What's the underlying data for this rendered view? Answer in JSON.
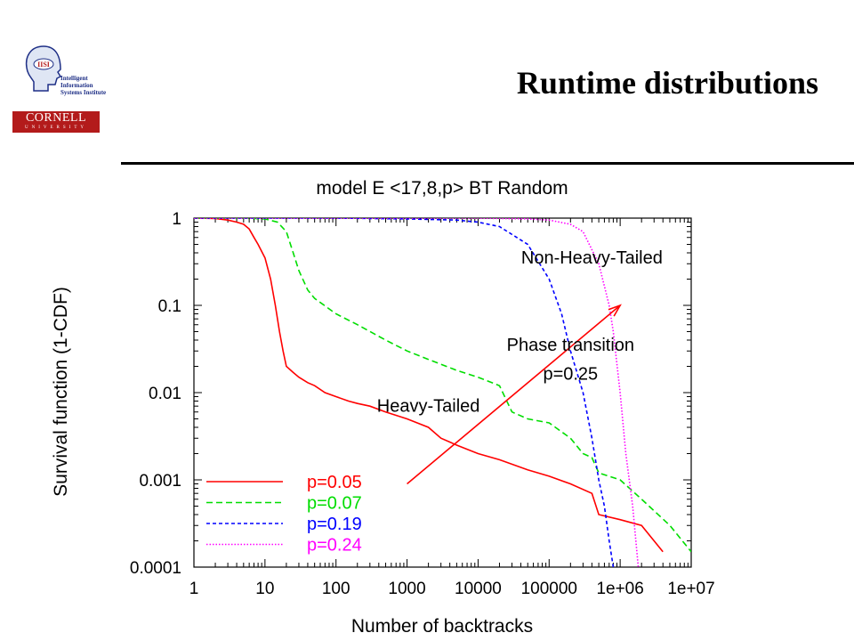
{
  "slide": {
    "title": "Runtime distributions"
  },
  "logos": {
    "iisi_badge": "IISI",
    "iisi_lines": [
      "Intelligent Information",
      "Systems Institute"
    ],
    "cornell_word": "CORNELL",
    "cornell_sub": "UNIVERSITY"
  },
  "chart_data": {
    "type": "line",
    "title": "model E <17,8,p> BT Random",
    "xlabel": "Number of backtracks",
    "ylabel": "Survival function (1-CDF)",
    "xscale": "log",
    "yscale": "log",
    "xlim": [
      1,
      10000000
    ],
    "ylim": [
      0.0001,
      1
    ],
    "xticks": [
      "1",
      "10",
      "100",
      "1000",
      "10000",
      "100000",
      "1e+06",
      "1e+07"
    ],
    "yticks": [
      "1",
      "0.1",
      "0.01",
      "0.001",
      "0.0001"
    ],
    "legend_position": "bottom-left",
    "series": [
      {
        "name": "p=0.05",
        "color": "#ff0000",
        "dash": "solid",
        "x": [
          1,
          2,
          3,
          4,
          5,
          6,
          7,
          8,
          10,
          12,
          14,
          16,
          18,
          20,
          25,
          30,
          40,
          50,
          70,
          100,
          150,
          200,
          300,
          500,
          1000,
          2000,
          3000,
          5000,
          10000,
          20000,
          50000,
          100000,
          200000,
          400000,
          500000,
          1000000,
          2000000,
          4000000
        ],
        "y": [
          1,
          0.99,
          0.95,
          0.9,
          0.85,
          0.75,
          0.6,
          0.5,
          0.35,
          0.2,
          0.1,
          0.05,
          0.03,
          0.02,
          0.017,
          0.015,
          0.013,
          0.012,
          0.01,
          0.009,
          0.008,
          0.0075,
          0.007,
          0.006,
          0.005,
          0.004,
          0.003,
          0.0025,
          0.002,
          0.0017,
          0.0013,
          0.0011,
          0.0009,
          0.0007,
          0.0004,
          0.00035,
          0.0003,
          0.00015
        ]
      },
      {
        "name": "p=0.07",
        "color": "#00dd00",
        "dash": "long",
        "x": [
          1,
          5,
          10,
          15,
          20,
          25,
          30,
          40,
          50,
          100,
          200,
          500,
          1000,
          2000,
          5000,
          10000,
          20000,
          30000,
          50000,
          100000,
          200000,
          300000,
          400000,
          500000,
          1000000,
          2000000,
          5000000,
          10000000
        ],
        "y": [
          1,
          1,
          0.98,
          0.9,
          0.7,
          0.4,
          0.25,
          0.15,
          0.12,
          0.08,
          0.06,
          0.04,
          0.03,
          0.024,
          0.018,
          0.015,
          0.012,
          0.006,
          0.005,
          0.0045,
          0.003,
          0.002,
          0.0018,
          0.0012,
          0.001,
          0.0006,
          0.0003,
          0.00015
        ]
      },
      {
        "name": "p=0.19",
        "color": "#0000ff",
        "dash": "short",
        "x": [
          1,
          10,
          100,
          1000,
          5000,
          10000,
          20000,
          50000,
          100000,
          150000,
          200000,
          300000,
          400000,
          500000,
          600000,
          700000,
          800000
        ],
        "y": [
          1,
          1,
          1,
          0.98,
          0.95,
          0.9,
          0.8,
          0.5,
          0.2,
          0.08,
          0.03,
          0.01,
          0.003,
          0.001,
          0.0005,
          0.0002,
          0.0001
        ]
      },
      {
        "name": "p=0.24",
        "color": "#ff00ff",
        "dash": "dotted",
        "x": [
          1,
          1000,
          10000,
          50000,
          100000,
          200000,
          300000,
          500000,
          700000,
          800000,
          1000000,
          1200000,
          1500000,
          1800000
        ],
        "y": [
          1,
          1,
          1,
          0.98,
          0.95,
          0.85,
          0.7,
          0.3,
          0.1,
          0.05,
          0.01,
          0.002,
          0.0005,
          0.0001
        ]
      }
    ],
    "annotations": [
      {
        "text": "Non-Heavy-Tailed",
        "x": 400000,
        "y": 0.3
      },
      {
        "text": "Phase transition",
        "x": 200000,
        "y": 0.03
      },
      {
        "text": "p=0.25",
        "x": 200000,
        "y": 0.014
      },
      {
        "text": "Heavy-Tailed",
        "x": 2000,
        "y": 0.006
      }
    ],
    "arrow": {
      "from": [
        1000,
        0.0009
      ],
      "to": [
        1000000,
        0.1
      ],
      "color": "#ff0000"
    }
  }
}
